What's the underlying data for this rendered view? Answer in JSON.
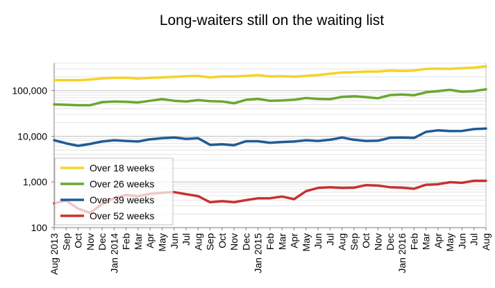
{
  "chart_data": {
    "type": "line",
    "title": "Long-waiters still on the waiting list",
    "xlabel": "",
    "ylabel": "",
    "y_scale": "log",
    "ylim": [
      100,
      400000
    ],
    "y_ticks": [
      100,
      1000,
      10000,
      100000
    ],
    "y_tick_labels": [
      "100",
      "1,000",
      "10,000",
      "100,000"
    ],
    "grid": true,
    "legend_position": "bottom-left",
    "categories": [
      "Aug 2013",
      "Sep",
      "Oct",
      "Nov",
      "Dec",
      "Jan 2014",
      "Feb",
      "Mar",
      "Apr",
      "May",
      "Jun",
      "Jul",
      "Aug",
      "Sep",
      "Oct",
      "Nov",
      "Dec",
      "Jan 2015",
      "Feb",
      "Mar",
      "Apr",
      "May",
      "Jun",
      "Jul",
      "Aug",
      "Sep",
      "Oct",
      "Nov",
      "Dec",
      "Jan 2016",
      "Feb",
      "Mar",
      "Apr",
      "May",
      "Jun",
      "Jul",
      "Aug"
    ],
    "series": [
      {
        "name": "Over 18 weeks",
        "color": "#f5d327",
        "values": [
          170000,
          170000,
          170000,
          175000,
          185000,
          190000,
          192000,
          183000,
          190000,
          195000,
          200000,
          207000,
          210000,
          195000,
          205000,
          205000,
          210000,
          218000,
          205000,
          207000,
          202000,
          210000,
          220000,
          235000,
          250000,
          253000,
          262000,
          262000,
          275000,
          270000,
          275000,
          300000,
          303000,
          300000,
          310000,
          320000,
          340000
        ]
      },
      {
        "name": "Over 26 weeks",
        "color": "#6aa72e",
        "values": [
          50000,
          49000,
          48000,
          48000,
          56000,
          58000,
          57000,
          55000,
          60000,
          65000,
          60000,
          58000,
          62000,
          59000,
          58000,
          53000,
          63000,
          66000,
          60000,
          61000,
          63000,
          69000,
          66000,
          65000,
          73000,
          75000,
          72000,
          68000,
          80000,
          82000,
          79000,
          92000,
          98000,
          104000,
          95000,
          98000,
          107000
        ]
      },
      {
        "name": "Over 39 weeks",
        "color": "#1f5b94",
        "values": [
          8200,
          7000,
          6200,
          6800,
          7700,
          8200,
          7900,
          7700,
          8600,
          9100,
          9400,
          8800,
          9100,
          6500,
          6700,
          6400,
          7800,
          7800,
          7200,
          7500,
          7700,
          8200,
          7900,
          8400,
          9400,
          8400,
          7900,
          8000,
          9300,
          9400,
          9200,
          12500,
          13500,
          13000,
          13100,
          14400,
          14800
        ]
      },
      {
        "name": "Over 52 weeks",
        "color": "#c83230",
        "values": [
          340,
          390,
          260,
          210,
          330,
          440,
          520,
          490,
          550,
          580,
          600,
          540,
          490,
          360,
          380,
          360,
          400,
          440,
          440,
          480,
          420,
          630,
          740,
          770,
          740,
          750,
          850,
          830,
          770,
          750,
          710,
          870,
          890,
          990,
          960,
          1060,
          1060
        ]
      }
    ]
  }
}
